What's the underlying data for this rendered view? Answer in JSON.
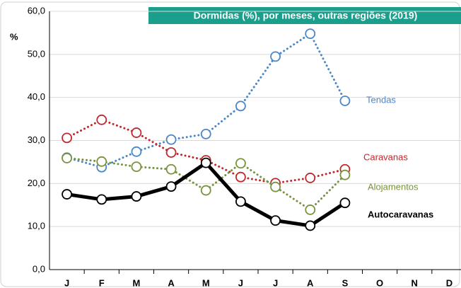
{
  "chart_data": {
    "type": "line",
    "title": "Dormidas (%), por meses, outras regiões (2019)",
    "y_label": "%",
    "categories": [
      "J",
      "F",
      "M",
      "A",
      "M",
      "J",
      "J",
      "A",
      "S",
      "O",
      "N",
      "D"
    ],
    "series": [
      {
        "name": "Tendas",
        "color": "#4a86c8",
        "style": "dotted",
        "values": [
          26.0,
          23.8,
          27.4,
          30.2,
          31.5,
          38.0,
          49.5,
          54.8,
          39.2,
          null,
          null,
          null
        ]
      },
      {
        "name": "Caravanas",
        "color": "#c0282d",
        "style": "dotted",
        "values": [
          30.6,
          34.8,
          31.8,
          27.2,
          25.4,
          21.5,
          20.1,
          21.3,
          23.3,
          null,
          null,
          null
        ]
      },
      {
        "name": "Alojamentos",
        "color": "#77933c",
        "style": "dotted",
        "values": [
          25.9,
          25.1,
          23.9,
          23.3,
          18.4,
          24.7,
          19.2,
          13.9,
          22.0,
          null,
          null,
          null
        ]
      },
      {
        "name": "Autocaravanas",
        "color": "#000000",
        "style": "solid",
        "values": [
          17.5,
          16.3,
          17.0,
          19.3,
          24.8,
          15.8,
          11.4,
          10.2,
          15.5,
          null,
          null,
          null
        ]
      }
    ],
    "ylim": [
      0,
      60
    ],
    "yticks": [
      {
        "value": 0,
        "label": "0,0"
      },
      {
        "value": 10,
        "label": "10,0"
      },
      {
        "value": 20,
        "label": "20,0"
      },
      {
        "value": 30,
        "label": "30,0"
      },
      {
        "value": 40,
        "label": "40,0"
      },
      {
        "value": 50,
        "label": "50,0"
      },
      {
        "value": 60,
        "label": "60,0"
      }
    ],
    "grid": true
  }
}
